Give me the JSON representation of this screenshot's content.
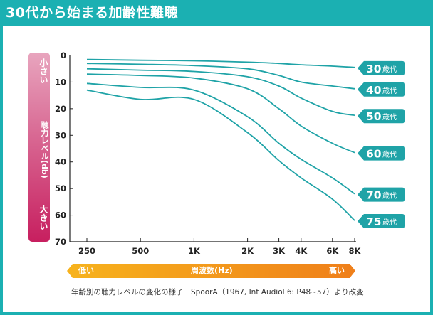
{
  "page": {
    "title": "30代から始まる加齢性難聴",
    "caption": "年齢別の聴力レベルの変化の様子　SpoorA（1967, Int Audiol 6: P48~57）より改変"
  },
  "y_axis_bar": {
    "top": "小さい",
    "middle": "聴力レベル(db)",
    "bottom": "大きい"
  },
  "x_axis_bar": {
    "left": "低い",
    "center": "周波数(Hz)",
    "right": "高い"
  },
  "colors": {
    "background": "#1bb0b2",
    "line": "#1fa3a7",
    "ybar_top": "#e8a5be",
    "ybar_bottom": "#c71f5f",
    "xbar_left": "#f7b31d",
    "xbar_right": "#ef7f1a"
  },
  "chart_data": {
    "type": "line",
    "x": [
      250,
      500,
      1000,
      2000,
      3000,
      4000,
      6000,
      8000
    ],
    "xticks": [
      "250",
      "500",
      "1K",
      "2K",
      "3K",
      "4K",
      "6K",
      "8K"
    ],
    "yticks": [
      "0",
      "10",
      "20",
      "30",
      "40",
      "50",
      "60",
      "70"
    ],
    "ylim": [
      0,
      70
    ],
    "y_inverted": true,
    "xscale": "log",
    "series": [
      {
        "name": "30歳代",
        "num": "30",
        "unit": "歳代",
        "values": [
          1.5,
          1.8,
          2,
          2.5,
          3,
          3.5,
          4,
          4.5
        ]
      },
      {
        "name": "40歳代",
        "num": "40",
        "unit": "歳代",
        "values": [
          3,
          3.3,
          3.8,
          5,
          7.5,
          10,
          11.5,
          12.5
        ]
      },
      {
        "name": "50歳代",
        "num": "50",
        "unit": "歳代",
        "values": [
          5,
          5.5,
          6,
          8,
          11.5,
          16,
          21,
          22.5
        ]
      },
      {
        "name": "60歳代",
        "num": "60",
        "unit": "歳代",
        "values": [
          7,
          7.5,
          8.5,
          12.5,
          20,
          26.5,
          33,
          36.5
        ]
      },
      {
        "name": "70歳代",
        "num": "70",
        "unit": "歳代",
        "values": [
          10.5,
          12,
          13,
          23,
          33,
          39,
          46,
          52
        ]
      },
      {
        "name": "75歳代",
        "num": "75",
        "unit": "歳代",
        "values": [
          13,
          16.5,
          16.5,
          29,
          39.5,
          46,
          54,
          62
        ]
      }
    ]
  }
}
